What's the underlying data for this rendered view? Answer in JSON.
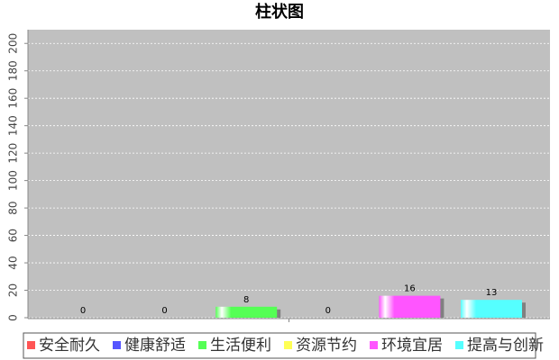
{
  "chart_data": {
    "type": "bar",
    "title": "柱状图",
    "categories": [
      null
    ],
    "series": [
      {
        "name": "安全耐久",
        "color": "#ff5555",
        "values": [
          0
        ]
      },
      {
        "name": "健康舒适",
        "color": "#5555ff",
        "values": [
          0
        ]
      },
      {
        "name": "生活便利",
        "color": "#55ff55",
        "values": [
          8
        ]
      },
      {
        "name": "资源节约",
        "color": "#ffff55",
        "values": [
          0
        ]
      },
      {
        "name": "环境宜居",
        "color": "#ff55ff",
        "values": [
          16
        ]
      },
      {
        "name": "提高与创新",
        "color": "#55ffff",
        "values": [
          13
        ]
      }
    ],
    "ylim": [
      0,
      210
    ],
    "yticks": [
      0,
      20,
      40,
      60,
      80,
      100,
      120,
      140,
      160,
      180,
      200
    ],
    "grid": true,
    "legend": "bottom"
  }
}
